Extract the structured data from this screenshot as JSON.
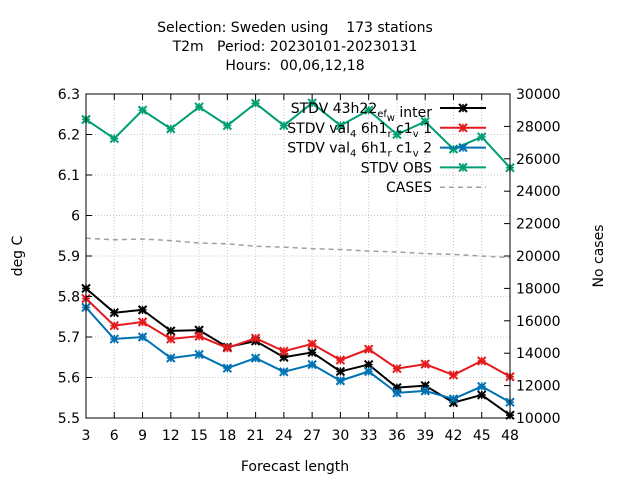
{
  "chart_data": {
    "type": "line",
    "title_lines": [
      "Selection: Sweden using    173 stations",
      "T2m   Period: 20230101-20230131",
      "Hours:  00,06,12,18"
    ],
    "xlabel": "Forecast length",
    "ylabel": "deg C",
    "y2label": "No cases",
    "x": [
      3,
      6,
      9,
      12,
      15,
      18,
      21,
      24,
      27,
      30,
      33,
      36,
      39,
      42,
      45,
      48
    ],
    "xlim": [
      3,
      48
    ],
    "ylim": [
      5.5,
      6.3
    ],
    "y2lim": [
      10000,
      30000
    ],
    "yticks": [
      5.5,
      5.6,
      5.7,
      5.8,
      5.9,
      6.0,
      6.1,
      6.2,
      6.3
    ],
    "ytick_labels": [
      "5.5",
      "5.6",
      "5.7",
      "5.8",
      "5.9",
      "6",
      "6.1",
      "6.2",
      "6.3"
    ],
    "y2ticks": [
      10000,
      12000,
      14000,
      16000,
      18000,
      20000,
      22000,
      24000,
      26000,
      28000,
      30000
    ],
    "legend_position": "top-right",
    "series": [
      {
        "name": "STDV 43h22_ef_w inter",
        "legend": {
          "base": "STDV 43h22",
          "sub": "ef",
          "sub2": "w",
          "tail": " inter",
          "prefix_sub": ""
        },
        "color": "#000000",
        "axis": "y1",
        "marker": "x",
        "values": [
          5.82,
          5.76,
          5.767,
          5.715,
          5.717,
          5.675,
          5.69,
          5.65,
          5.662,
          5.615,
          5.632,
          5.575,
          5.58,
          5.538,
          5.557,
          5.507
        ]
      },
      {
        "name": "STDV val_4 6h1_r c1_v 1",
        "legend": {
          "base": "STDV val",
          "sub": "4",
          "mid": " 6h1",
          "sub2": "r",
          "mid2": " c1",
          "sub3": "v",
          "tail": " 1"
        },
        "color": "#e41a1c",
        "axis": "y1",
        "marker": "x",
        "values": [
          5.795,
          5.728,
          5.737,
          5.695,
          5.702,
          5.673,
          5.697,
          5.665,
          5.683,
          5.643,
          5.67,
          5.622,
          5.633,
          5.606,
          5.641,
          5.602
        ]
      },
      {
        "name": "STDV val_4 6h1_r c1_v 2",
        "legend": {
          "base": "STDV val",
          "sub": "4",
          "mid": " 6h1",
          "sub2": "r",
          "mid2": " c1",
          "sub3": "v",
          "tail": " 2"
        },
        "color": "#0072b2",
        "axis": "y1",
        "marker": "x",
        "values": [
          5.773,
          5.695,
          5.7,
          5.648,
          5.657,
          5.623,
          5.648,
          5.614,
          5.632,
          5.592,
          5.615,
          5.562,
          5.567,
          5.547,
          5.578,
          5.539
        ]
      },
      {
        "name": "STDV OBS",
        "legend": {
          "base": "STDV OBS"
        },
        "color": "#009e73",
        "axis": "y1",
        "marker": "x",
        "values": [
          6.237,
          6.19,
          6.26,
          6.214,
          6.268,
          6.222,
          6.277,
          6.222,
          6.278,
          6.222,
          6.26,
          6.2,
          6.232,
          6.164,
          6.194,
          6.118
        ]
      },
      {
        "name": "CASES",
        "legend": {
          "base": "CASES"
        },
        "color": "#a0a0a0",
        "axis": "y2",
        "marker": "none",
        "dashed": true,
        "values": [
          21100,
          21000,
          21050,
          20950,
          20800,
          20750,
          20600,
          20550,
          20450,
          20400,
          20300,
          20250,
          20150,
          20100,
          20000,
          19900
        ]
      }
    ]
  }
}
